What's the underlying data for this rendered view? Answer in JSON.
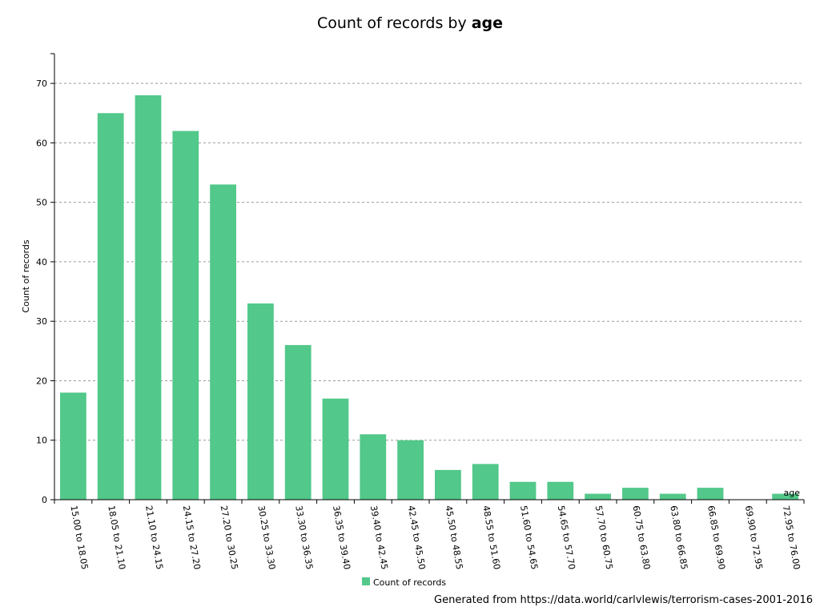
{
  "chart_data": {
    "type": "bar",
    "title_prefix": "Count of records by ",
    "title_emphasis": "age",
    "ylabel": "Count of records",
    "xlabel": "age",
    "ylim": [
      0,
      75
    ],
    "yticks": [
      0,
      10,
      20,
      30,
      40,
      50,
      60,
      70
    ],
    "grid": true,
    "legend_position": "bottom-center",
    "bar_color": "#52c88a",
    "categories": [
      "15.00 to 18.05",
      "18.05 to 21.10",
      "21.10 to 24.15",
      "24.15 to 27.20",
      "27.20 to 30.25",
      "30.25 to 33.30",
      "33.30 to 36.35",
      "36.35 to 39.40",
      "39.40 to 42.45",
      "42.45 to 45.50",
      "45.50 to 48.55",
      "48.55 to 51.60",
      "51.60 to 54.65",
      "54.65 to 57.70",
      "57.70 to 60.75",
      "60.75 to 63.80",
      "63.80 to 66.85",
      "66.85 to 69.90",
      "69.90 to 72.95",
      "72.95 to 76.00"
    ],
    "series": [
      {
        "name": "Count of records",
        "values": [
          18,
          65,
          68,
          62,
          53,
          33,
          26,
          17,
          11,
          10,
          5,
          6,
          3,
          3,
          1,
          2,
          1,
          2,
          0,
          1
        ]
      }
    ]
  },
  "footer": {
    "source_text": "Generated from https://data.world/carlvlewis/terrorism-cases-2001-2016"
  }
}
